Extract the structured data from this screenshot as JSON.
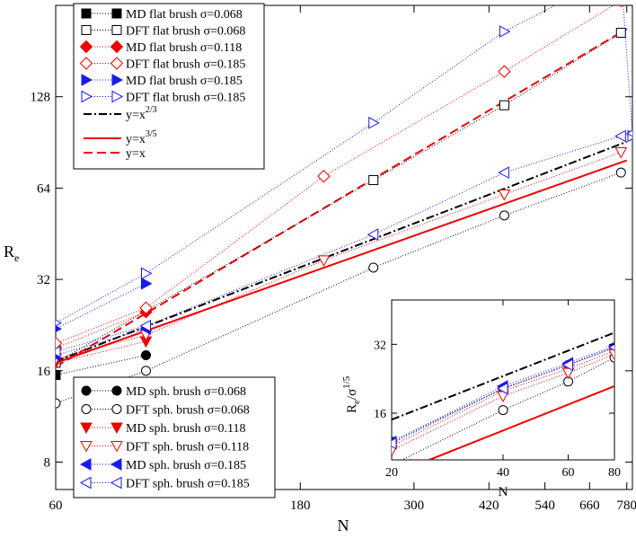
{
  "chart_data": {
    "type": "line",
    "scale": "log-log",
    "xlabel": "N",
    "ylabel": "R",
    "ylabel_sub": "e",
    "xlim": [
      60,
      800
    ],
    "ylim": [
      6.5,
      256
    ],
    "xticks": [
      60,
      180,
      300,
      420,
      540,
      660,
      780
    ],
    "yticks": [
      8,
      16,
      32,
      64,
      128
    ],
    "colors": {
      "black": "#000000",
      "red": "#ee0000",
      "blue": "#1a1aee"
    },
    "guides": [
      {
        "name": "y=x^2/3",
        "label_base": "y=x",
        "label_exp": "2/3",
        "color": "black",
        "style": "dashdot",
        "x": [
          60,
          780
        ],
        "y": [
          17.2,
          91.0
        ]
      },
      {
        "name": "y=x^3/5",
        "label_base": "y=x",
        "label_exp": "3/5",
        "color": "red",
        "style": "solid",
        "x": [
          60,
          780
        ],
        "y": [
          17.0,
          79.0
        ]
      },
      {
        "name": "y=x",
        "label_base": "y=x",
        "label_exp": "",
        "color": "red",
        "style": "dashed",
        "x": [
          60,
          780
        ],
        "y": [
          16.5,
          214.0
        ]
      }
    ],
    "series": [
      {
        "name": "MD flat brush σ=0.068",
        "color": "black",
        "marker": "square",
        "filled": true,
        "x": [
          60
        ],
        "y": [
          15.5
        ]
      },
      {
        "name": "DFT flat brush σ=0.068",
        "color": "black",
        "marker": "square",
        "filled": false,
        "x": [
          60,
          250,
          450,
          760
        ],
        "y": [
          17.0,
          68.0,
          120.0,
          208.0
        ]
      },
      {
        "name": "MD flat brush σ=0.118",
        "color": "red",
        "marker": "diamond",
        "filled": true,
        "x": [
          60,
          90
        ],
        "y": [
          19.0,
          25.0
        ]
      },
      {
        "name": "DFT flat brush σ=0.185",
        "color": "red",
        "marker": "diamond",
        "filled": false,
        "x": [
          60,
          90,
          200,
          450,
          760
        ],
        "y": [
          19.7,
          25.8,
          70.0,
          155.0,
          265.0
        ]
      },
      {
        "name": "MD flat brush σ=0.185",
        "color": "blue",
        "marker": "triangle-right",
        "filled": true,
        "x": [
          60,
          90
        ],
        "y": [
          22.0,
          31.0
        ]
      },
      {
        "name": "DFT flat brush σ=0.185",
        "color": "blue",
        "marker": "triangle-right",
        "filled": false,
        "x": [
          60,
          90,
          250,
          450,
          760,
          800
        ],
        "y": [
          23.0,
          33.5,
          105.0,
          210.0,
          330.0,
          95.0
        ]
      },
      {
        "name": "MD sph. brush σ=0.068",
        "color": "black",
        "marker": "circle",
        "filled": true,
        "x": [
          60,
          90
        ],
        "y": [
          15.5,
          18.0
        ]
      },
      {
        "name": "DFT sph. brush σ=0.068",
        "color": "black",
        "marker": "circle",
        "filled": false,
        "x": [
          60,
          90,
          250,
          450,
          760
        ],
        "y": [
          12.5,
          16.0,
          35.0,
          52.0,
          72.0
        ]
      },
      {
        "name": "MD sph. brush σ=0.118",
        "color": "red",
        "marker": "triangle-down",
        "filled": true,
        "x": [
          60,
          90
        ],
        "y": [
          17.0,
          20.0
        ]
      },
      {
        "name": "DFT sph. brush σ=0.118",
        "color": "red",
        "marker": "triangle-down",
        "filled": false,
        "x": [
          60,
          90,
          200,
          450,
          760
        ],
        "y": [
          17.5,
          21.0,
          37.0,
          61.0,
          84.0
        ]
      },
      {
        "name": "MD sph. brush σ=0.185",
        "color": "blue",
        "marker": "triangle-left",
        "filled": true,
        "x": [
          60,
          90
        ],
        "y": [
          18.0,
          22.0
        ]
      },
      {
        "name": "DFT sph. brush σ=0.185",
        "color": "blue",
        "marker": "triangle-left",
        "filled": false,
        "x": [
          60,
          90,
          250,
          450,
          760,
          800
        ],
        "y": [
          18.5,
          22.5,
          45.0,
          72.0,
          95.0,
          97.0
        ]
      }
    ],
    "inset": {
      "type": "line",
      "scale": "log-log",
      "xlabel": "N",
      "ylabel": "R",
      "ylabel_sub": "e",
      "ylabel_tail": "/σ",
      "ylabel_exp": "1/5",
      "xlim": [
        20,
        80
      ],
      "ylim": [
        10,
        50
      ],
      "xticks": [
        20,
        40,
        60,
        80
      ],
      "yticks": [
        16,
        32
      ],
      "guides": [
        {
          "color": "black",
          "style": "dashdot",
          "x": [
            20,
            80
          ],
          "y": [
            15.0,
            36.0
          ]
        },
        {
          "color": "red",
          "style": "solid",
          "x": [
            20,
            80
          ],
          "y": [
            8.6,
            21.0
          ]
        }
      ],
      "series": [
        {
          "color": "black",
          "marker": "circle",
          "filled": false,
          "x": [
            20,
            40,
            60,
            80
          ],
          "y": [
            9.5,
            16.5,
            22.0,
            28.0
          ]
        },
        {
          "color": "black",
          "marker": "circle",
          "filled": true,
          "x": [
            20,
            40,
            60,
            80
          ],
          "y": [
            12.0,
            20.5,
            26.0,
            31.0
          ]
        },
        {
          "color": "red",
          "marker": "triangle-down",
          "filled": true,
          "x": [
            20,
            40,
            60,
            80
          ],
          "y": [
            11.5,
            20.0,
            25.0,
            30.0
          ]
        },
        {
          "color": "red",
          "marker": "triangle-down",
          "filled": false,
          "x": [
            20,
            40,
            60,
            80
          ],
          "y": [
            11.0,
            19.0,
            24.0,
            29.0
          ]
        },
        {
          "color": "blue",
          "marker": "triangle-left",
          "filled": true,
          "x": [
            20,
            40,
            60,
            80
          ],
          "y": [
            12.0,
            21.0,
            26.5,
            31.5
          ]
        },
        {
          "color": "blue",
          "marker": "triangle-left",
          "filled": false,
          "x": [
            20,
            40,
            60,
            80
          ],
          "y": [
            11.8,
            20.5,
            26.0,
            31.0
          ]
        }
      ]
    }
  }
}
